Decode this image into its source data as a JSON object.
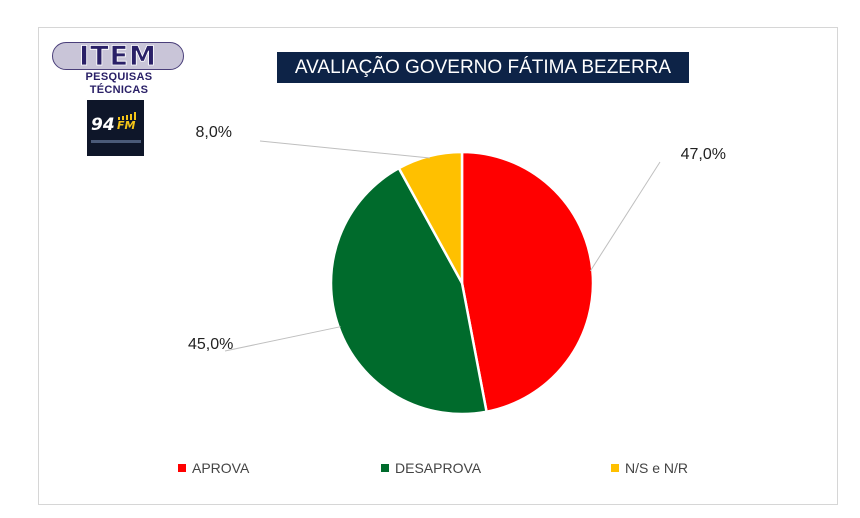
{
  "header": {
    "brand": {
      "name": "ITEM",
      "tagline": "PESQUISAS TÉCNICAS"
    },
    "partner": {
      "number": "94",
      "band": "FM"
    }
  },
  "chart_data": {
    "type": "pie",
    "title": "AVALIAÇÃO GOVERNO FÁTIMA BEZERRA",
    "categories": [
      "APROVA",
      "DESAPROVA",
      "N/S e N/R"
    ],
    "values": [
      47.0,
      45.0,
      8.0
    ],
    "data_labels": [
      "47,0%",
      "45,0%",
      "8,0%"
    ],
    "colors": [
      "#ff0000",
      "#006b2c",
      "#ffc000"
    ],
    "legend_position": "bottom",
    "start_angle_deg": 0,
    "direction": "clockwise"
  }
}
